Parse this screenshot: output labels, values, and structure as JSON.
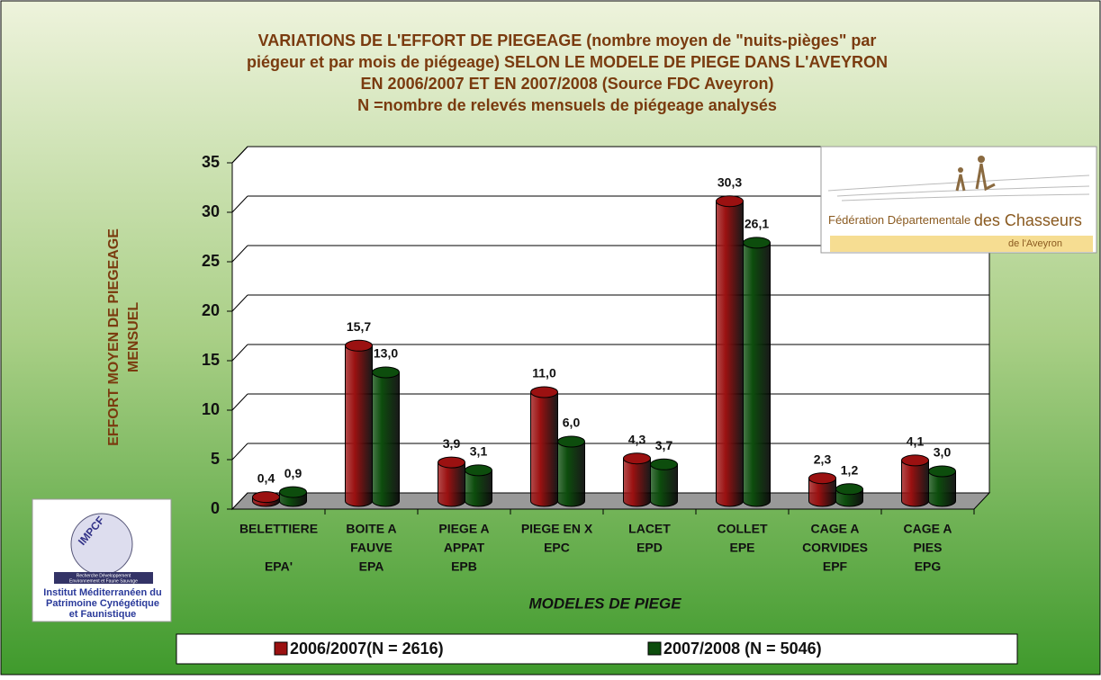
{
  "chart_data": {
    "type": "bar",
    "title": [
      "VARIATIONS DE L'EFFORT DE PIEGEAGE (nombre moyen de \"nuits-pièges\" par",
      "piégeur et par mois de piégeage) SELON LE MODELE DE PIEGE DANS L'AVEYRON",
      "EN 2006/2007 ET EN 2007/2008 (Source FDC Aveyron)",
      "N =nombre de relevés mensuels de piégeage analysés"
    ],
    "y_label": [
      "EFFORT MOYEN DE PIEGEAGE",
      "MENSUEL"
    ],
    "x_label": "MODELES DE PIEGE",
    "categories": [
      [
        "BELETTIERE",
        "",
        "EPA'"
      ],
      [
        "BOITE A",
        "FAUVE",
        "EPA"
      ],
      [
        "PIEGE A",
        "APPAT",
        "EPB"
      ],
      [
        "PIEGE EN X",
        "EPC"
      ],
      [
        "LACET",
        "EPD"
      ],
      [
        "COLLET",
        "EPE"
      ],
      [
        "CAGE A",
        "CORVIDES",
        "EPF"
      ],
      [
        "CAGE A",
        "PIES",
        "EPG"
      ]
    ],
    "series": [
      {
        "name": "2006/2007(N = 2616)",
        "color": "#9b1111",
        "values": [
          0.4,
          15.7,
          3.9,
          11.0,
          4.3,
          30.3,
          2.3,
          4.1
        ],
        "value_labels": [
          "0,4",
          "15,7",
          "3,9",
          "11,0",
          "4,3",
          "30,3",
          "2,3",
          "4,1"
        ]
      },
      {
        "name": "2007/2008 (N = 5046)",
        "color": "#0d4d0d",
        "values": [
          0.9,
          13.0,
          3.1,
          6.0,
          3.7,
          26.1,
          1.2,
          3.0
        ],
        "value_labels": [
          "0,9",
          "13,0",
          "3,1",
          "6,0",
          "3,7",
          "26,1",
          "1,2",
          "3,0"
        ]
      }
    ],
    "ylim": [
      0,
      35
    ],
    "yticks": [
      0,
      5,
      10,
      15,
      20,
      25,
      30,
      35
    ],
    "grid": true,
    "legend": "bottom"
  },
  "logos": {
    "fdc": [
      "Fédération Départementale ",
      "des Chasseurs",
      "de l'Aveyron"
    ],
    "impcf": [
      "IMPCF",
      "Recherche Développement",
      "Environnement et Faune Sauvage",
      "Institut Méditerranéen du",
      "Patrimoine Cynégétique",
      "et Faunistique"
    ]
  }
}
